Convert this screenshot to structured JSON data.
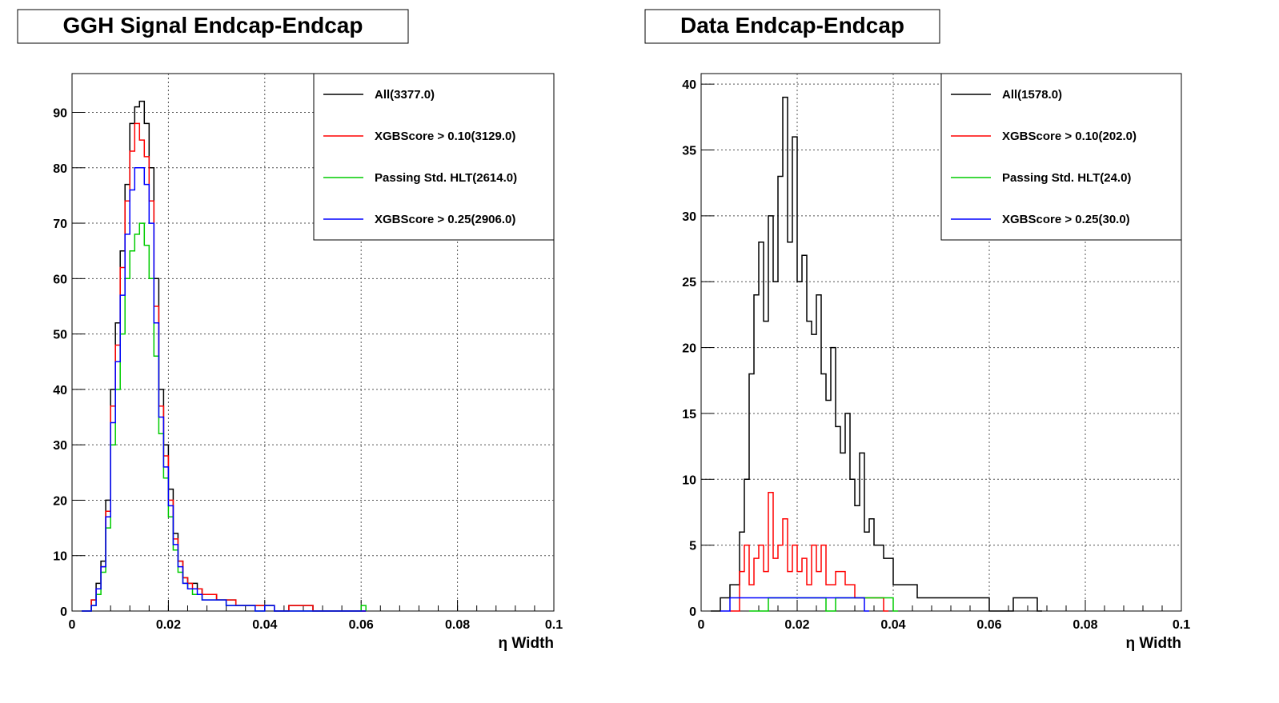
{
  "colors": {
    "all": "#000000",
    "xgb010": "#ff0000",
    "hlt": "#00cc00",
    "xgb025": "#0000ff",
    "grid": "#555555"
  },
  "chart_data": [
    {
      "type": "line",
      "title": "GGH Signal Endcap-Endcap",
      "xlabel": "η Width",
      "ylabel": "",
      "xlim": [
        0,
        0.1
      ],
      "ylim": [
        0,
        97
      ],
      "grid": true,
      "legend_position": "top-right",
      "xticks": [
        "0",
        "0.02",
        "0.04",
        "0.06",
        "0.08",
        "0.1"
      ],
      "xtick_values": [
        0,
        0.02,
        0.04,
        0.06,
        0.08,
        0.1
      ],
      "yticks": [
        "0",
        "10",
        "20",
        "30",
        "40",
        "50",
        "60",
        "70",
        "80",
        "90"
      ],
      "ytick_values": [
        0,
        10,
        20,
        30,
        40,
        50,
        60,
        70,
        80,
        90
      ],
      "series": [
        {
          "name": "All(3377.0)",
          "color": "#000000",
          "x": [
            0.002,
            0.004,
            0.005,
            0.006,
            0.007,
            0.008,
            0.009,
            0.01,
            0.011,
            0.012,
            0.013,
            0.014,
            0.015,
            0.016,
            0.017,
            0.018,
            0.019,
            0.02,
            0.021,
            0.022,
            0.023,
            0.024,
            0.025,
            0.026,
            0.027,
            0.028,
            0.03,
            0.032,
            0.034,
            0.036,
            0.038,
            0.04,
            0.042,
            0.045,
            0.05,
            0.055,
            0.06
          ],
          "y": [
            0,
            2,
            5,
            9,
            20,
            40,
            52,
            65,
            77,
            88,
            91,
            92,
            88,
            80,
            60,
            40,
            30,
            22,
            14,
            9,
            6,
            5,
            5,
            4,
            3,
            3,
            2,
            2,
            1,
            1,
            1,
            1,
            0,
            1,
            0,
            0,
            0
          ]
        },
        {
          "name": "XGBScore > 0.10(3129.0)",
          "color": "#ff0000",
          "x": [
            0.002,
            0.004,
            0.005,
            0.006,
            0.007,
            0.008,
            0.009,
            0.01,
            0.011,
            0.012,
            0.013,
            0.014,
            0.015,
            0.016,
            0.017,
            0.018,
            0.019,
            0.02,
            0.021,
            0.022,
            0.023,
            0.024,
            0.025,
            0.026,
            0.027,
            0.028,
            0.03,
            0.032,
            0.034,
            0.036,
            0.038,
            0.04,
            0.042,
            0.045,
            0.05,
            0.055,
            0.06
          ],
          "y": [
            0,
            2,
            4,
            8,
            18,
            37,
            48,
            62,
            74,
            83,
            88,
            85,
            82,
            74,
            55,
            37,
            28,
            20,
            13,
            9,
            6,
            5,
            4,
            4,
            3,
            3,
            2,
            2,
            1,
            1,
            1,
            1,
            0,
            1,
            0,
            0,
            0
          ]
        },
        {
          "name": "Passing Std. HLT(2614.0)",
          "color": "#00cc00",
          "x": [
            0.002,
            0.004,
            0.005,
            0.006,
            0.007,
            0.008,
            0.009,
            0.01,
            0.011,
            0.012,
            0.013,
            0.014,
            0.015,
            0.016,
            0.017,
            0.018,
            0.019,
            0.02,
            0.021,
            0.022,
            0.023,
            0.024,
            0.025,
            0.026,
            0.027,
            0.028,
            0.03,
            0.032,
            0.034,
            0.036,
            0.038,
            0.04,
            0.042,
            0.045,
            0.05,
            0.055,
            0.06
          ],
          "y": [
            0,
            1,
            3,
            7,
            15,
            30,
            40,
            50,
            60,
            65,
            68,
            70,
            66,
            60,
            46,
            32,
            24,
            17,
            11,
            7,
            5,
            4,
            3,
            3,
            2,
            2,
            2,
            1,
            1,
            1,
            0,
            1,
            0,
            0,
            0,
            0,
            1
          ]
        },
        {
          "name": "XGBScore > 0.25(2906.0)",
          "color": "#0000ff",
          "x": [
            0.002,
            0.004,
            0.005,
            0.006,
            0.007,
            0.008,
            0.009,
            0.01,
            0.011,
            0.012,
            0.013,
            0.014,
            0.015,
            0.016,
            0.017,
            0.018,
            0.019,
            0.02,
            0.021,
            0.022,
            0.023,
            0.024,
            0.025,
            0.026,
            0.027,
            0.028,
            0.03,
            0.032,
            0.034,
            0.036,
            0.038,
            0.04,
            0.042,
            0.045,
            0.05,
            0.055,
            0.06
          ],
          "y": [
            0,
            1,
            4,
            8,
            17,
            34,
            45,
            57,
            68,
            76,
            80,
            80,
            77,
            70,
            52,
            35,
            26,
            19,
            12,
            8,
            5,
            4,
            4,
            3,
            2,
            2,
            2,
            1,
            1,
            1,
            0,
            1,
            0,
            0,
            0,
            0,
            0
          ]
        }
      ]
    },
    {
      "type": "line",
      "title": "Data Endcap-Endcap",
      "xlabel": "η Width",
      "ylabel": "",
      "xlim": [
        0,
        0.1
      ],
      "ylim": [
        0,
        40.8
      ],
      "grid": true,
      "legend_position": "top-right",
      "xticks": [
        "0",
        "0.02",
        "0.04",
        "0.06",
        "0.08",
        "0.1"
      ],
      "xtick_values": [
        0,
        0.02,
        0.04,
        0.06,
        0.08,
        0.1
      ],
      "yticks": [
        "0",
        "5",
        "10",
        "15",
        "20",
        "25",
        "30",
        "35",
        "40"
      ],
      "ytick_values": [
        0,
        5,
        10,
        15,
        20,
        25,
        30,
        35,
        40
      ],
      "series": [
        {
          "name": "All(1578.0)",
          "color": "#000000",
          "x": [
            0.002,
            0.004,
            0.006,
            0.008,
            0.009,
            0.01,
            0.011,
            0.012,
            0.013,
            0.014,
            0.015,
            0.016,
            0.017,
            0.018,
            0.019,
            0.02,
            0.021,
            0.022,
            0.023,
            0.024,
            0.025,
            0.026,
            0.027,
            0.028,
            0.029,
            0.03,
            0.031,
            0.032,
            0.033,
            0.034,
            0.035,
            0.036,
            0.038,
            0.04,
            0.042,
            0.045,
            0.048,
            0.05,
            0.055,
            0.06,
            0.065,
            0.07
          ],
          "y": [
            0,
            1,
            2,
            6,
            10,
            18,
            24,
            28,
            22,
            30,
            25,
            33,
            39,
            28,
            36,
            25,
            27,
            22,
            21,
            24,
            18,
            16,
            20,
            14,
            12,
            15,
            10,
            8,
            12,
            6,
            7,
            5,
            4,
            2,
            2,
            1,
            1,
            1,
            1,
            0,
            1,
            0
          ]
        },
        {
          "name": "XGBScore > 0.10(202.0)",
          "color": "#ff0000",
          "x": [
            0.006,
            0.008,
            0.009,
            0.01,
            0.011,
            0.012,
            0.013,
            0.014,
            0.015,
            0.016,
            0.017,
            0.018,
            0.019,
            0.02,
            0.021,
            0.022,
            0.023,
            0.024,
            0.025,
            0.026,
            0.028,
            0.03,
            0.032,
            0.035,
            0.038
          ],
          "y": [
            0,
            3,
            5,
            2,
            4,
            5,
            3,
            9,
            4,
            5,
            7,
            3,
            5,
            3,
            4,
            2,
            5,
            3,
            5,
            2,
            3,
            2,
            1,
            1,
            0
          ]
        },
        {
          "name": "Passing Std. HLT(24.0)",
          "color": "#00cc00",
          "x": [
            0.01,
            0.014,
            0.018,
            0.022,
            0.026,
            0.028,
            0.03,
            0.032,
            0.035,
            0.038,
            0.04
          ],
          "y": [
            0,
            1,
            1,
            1,
            0,
            1,
            1,
            1,
            1,
            1,
            0
          ]
        },
        {
          "name": "XGBScore > 0.25(30.0)",
          "color": "#0000ff",
          "x": [
            0.004,
            0.006,
            0.008,
            0.01,
            0.012,
            0.014,
            0.016,
            0.018,
            0.02,
            0.022,
            0.024,
            0.026,
            0.028,
            0.03,
            0.034
          ],
          "y": [
            0,
            1,
            1,
            1,
            1,
            1,
            1,
            1,
            1,
            1,
            1,
            1,
            1,
            1,
            0
          ]
        }
      ]
    }
  ]
}
